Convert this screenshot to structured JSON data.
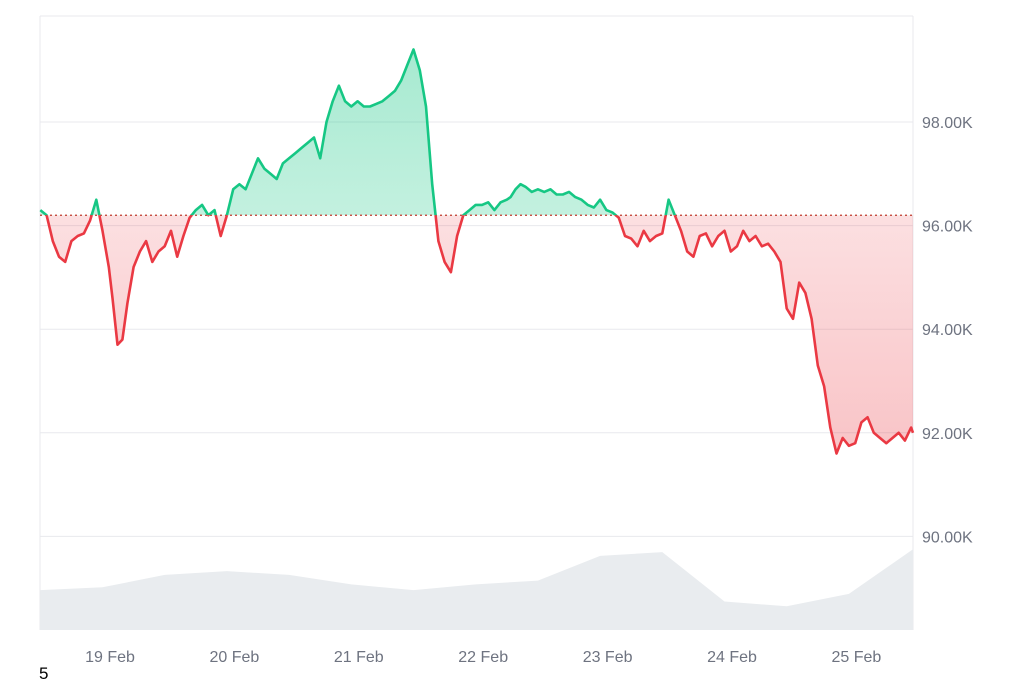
{
  "footnote": "5",
  "colors": {
    "up_line": "#16c784",
    "down_line": "#ea3943",
    "up_fill_top": "#16c784",
    "down_fill_bottom": "#ea3943",
    "baseline": "#c0392b",
    "grid": "#e8e9ed",
    "volume": "#e9ecef",
    "tick_text": "#6e7380"
  },
  "chart_data": {
    "type": "area",
    "x_ticks": [
      "19 Feb",
      "20 Feb",
      "21 Feb",
      "22 Feb",
      "23 Feb",
      "24 Feb",
      "25 Feb"
    ],
    "y_ticks": [
      {
        "value": 98000,
        "label": "98.00K"
      },
      {
        "value": 96000,
        "label": "96.00K"
      },
      {
        "value": 94000,
        "label": "94.00K"
      },
      {
        "value": 92000,
        "label": "92.00K"
      },
      {
        "value": 90000,
        "label": "90.00K"
      }
    ],
    "x_domain": [
      "18 Feb 09:00",
      "25 Feb 10:00"
    ],
    "ylim": [
      88200,
      98200
    ],
    "baseline_price": 96200,
    "grid": true,
    "price_series": {
      "x_day_offset_from_18_Feb": [
        0.0,
        0.05,
        0.1,
        0.15,
        0.2,
        0.25,
        0.3,
        0.35,
        0.4,
        0.45,
        0.5,
        0.55,
        0.58,
        0.62,
        0.66,
        0.7,
        0.75,
        0.8,
        0.85,
        0.9,
        0.95,
        1.0,
        1.05,
        1.1,
        1.15,
        1.2,
        1.25,
        1.3,
        1.35,
        1.4,
        1.45,
        1.5,
        1.55,
        1.6,
        1.65,
        1.7,
        1.75,
        1.8,
        1.85,
        1.9,
        1.95,
        2.0,
        2.05,
        2.1,
        2.15,
        2.2,
        2.25,
        2.3,
        2.35,
        2.4,
        2.45,
        2.5,
        2.55,
        2.6,
        2.65,
        2.7,
        2.75,
        2.8,
        2.85,
        2.9,
        2.95,
        3.0,
        3.05,
        3.1,
        3.15,
        3.2,
        3.25,
        3.3,
        3.35,
        3.4,
        3.45,
        3.5,
        3.55,
        3.6,
        3.65,
        3.7,
        3.75,
        3.78,
        3.82,
        3.86,
        3.9,
        3.95,
        4.0,
        4.05,
        4.1,
        4.15,
        4.2,
        4.25,
        4.3,
        4.35,
        4.4,
        4.45,
        4.5,
        4.55,
        4.6,
        4.65,
        4.7,
        4.75,
        4.8,
        4.85,
        4.9,
        4.95,
        5.0,
        5.05,
        5.1,
        5.15,
        5.2,
        5.25,
        5.3,
        5.35,
        5.4,
        5.45,
        5.5,
        5.55,
        5.6,
        5.65,
        5.7,
        5.75,
        5.8,
        5.85,
        5.9,
        5.95,
        6.0,
        6.05,
        6.1,
        6.15,
        6.2,
        6.25,
        6.3,
        6.35,
        6.4,
        6.45,
        6.5,
        6.55,
        6.6,
        6.65,
        6.7,
        6.75,
        6.8,
        6.85,
        6.9,
        6.95,
        7.0,
        7.04
      ],
      "price": [
        96300,
        96200,
        95700,
        95400,
        95300,
        95700,
        95800,
        95850,
        96100,
        96500,
        95900,
        95200,
        94600,
        93700,
        93800,
        94500,
        95200,
        95500,
        95700,
        95300,
        95500,
        95600,
        95900,
        95400,
        95800,
        96150,
        96300,
        96400,
        96200,
        96300,
        95800,
        96200,
        96700,
        96800,
        96700,
        97000,
        97300,
        97100,
        97000,
        96900,
        97200,
        97300,
        97400,
        97500,
        97600,
        97700,
        97300,
        98000,
        98400,
        98700,
        98400,
        98300,
        98400,
        98300,
        98300,
        98350,
        98400,
        98500,
        98600,
        98800,
        99100,
        99400,
        99000,
        98300,
        96800,
        95700,
        95300,
        95100,
        95800,
        96200,
        96300,
        96400,
        96400,
        96450,
        96300,
        96450,
        96500,
        96550,
        96700,
        96800,
        96750,
        96650,
        96700,
        96650,
        96700,
        96600,
        96600,
        96650,
        96550,
        96500,
        96400,
        96350,
        96500,
        96300,
        96250,
        96150,
        95800,
        95750,
        95600,
        95900,
        95700,
        95800,
        95850,
        96500,
        96200,
        95900,
        95500,
        95400,
        95800,
        95850,
        95600,
        95800,
        95900,
        95500,
        95600,
        95900,
        95700,
        95800,
        95600,
        95650,
        95500,
        95300,
        94400,
        94200,
        94900,
        94700,
        94200,
        93300,
        92900,
        92100,
        91600,
        91900,
        91750,
        91800,
        92200,
        92300,
        92000,
        91900,
        91800,
        91900,
        92000,
        91850,
        92100,
        92000
      ]
    },
    "volume_series": {
      "x_day_offset_from_18_Feb": [
        0.0,
        0.5,
        1.0,
        1.5,
        2.0,
        2.5,
        3.0,
        3.5,
        4.0,
        4.5,
        5.0,
        5.5,
        6.0,
        6.5,
        7.04
      ],
      "relative_volume": [
        0.42,
        0.45,
        0.58,
        0.62,
        0.58,
        0.48,
        0.42,
        0.48,
        0.52,
        0.78,
        0.82,
        0.3,
        0.25,
        0.38,
        0.85
      ]
    }
  }
}
